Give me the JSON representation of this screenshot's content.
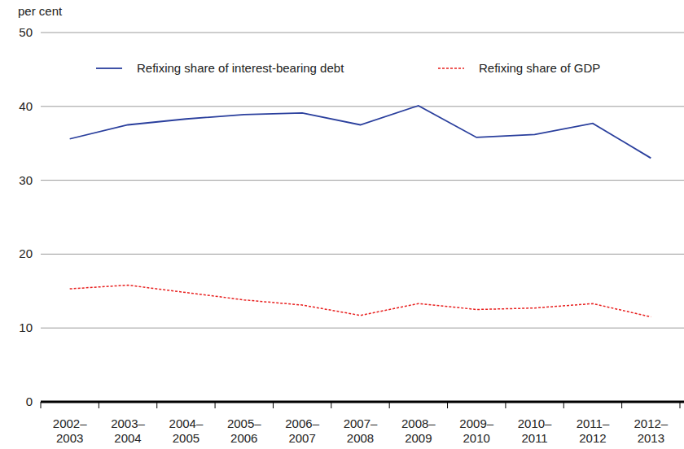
{
  "chart_data": {
    "type": "line",
    "y_label": "per cent",
    "categories": [
      "2002–2003",
      "2003–2004",
      "2004–2005",
      "2005–2006",
      "2006–2007",
      "2007–2008",
      "2008–2009",
      "2009–2010",
      "2010–2011",
      "2011–2012",
      "2012–2013"
    ],
    "series": [
      {
        "name": "Refixing share of interest-bearing debt",
        "color": "#2a3f9d",
        "line_style": "solid",
        "values": [
          35.6,
          37.5,
          38.3,
          38.9,
          39.1,
          37.5,
          40.1,
          35.8,
          36.2,
          37.7,
          33.0
        ]
      },
      {
        "name": "Refixing share of GDP",
        "color": "#e8201f",
        "line_style": "dashed",
        "values": [
          15.3,
          15.8,
          14.8,
          13.8,
          13.1,
          11.7,
          13.3,
          12.5,
          12.7,
          13.3,
          11.5
        ]
      }
    ],
    "ylim": [
      0,
      50
    ],
    "yticks": [
      0,
      10,
      20,
      30,
      40,
      50
    ],
    "grid": true,
    "legend": "top"
  }
}
